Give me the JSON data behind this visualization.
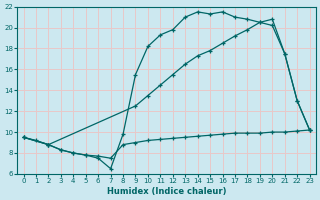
{
  "bg_color": "#cce8f0",
  "grid_color": "#e8c8c8",
  "line_color": "#006666",
  "xlabel": "Humidex (Indice chaleur)",
  "xlim": [
    -0.5,
    23.5
  ],
  "ylim": [
    6,
    22
  ],
  "yticks": [
    6,
    8,
    10,
    12,
    14,
    16,
    18,
    20,
    22
  ],
  "xticks": [
    0,
    1,
    2,
    3,
    4,
    5,
    6,
    7,
    8,
    9,
    10,
    11,
    12,
    13,
    14,
    15,
    16,
    17,
    18,
    19,
    20,
    21,
    22,
    23
  ],
  "line1_x": [
    0,
    1,
    2,
    3,
    4,
    5,
    6,
    7,
    8,
    9,
    10,
    11,
    12,
    13,
    14,
    15,
    16,
    17,
    18,
    19,
    20,
    21,
    22,
    23
  ],
  "line1_y": [
    9.5,
    9.2,
    8.8,
    8.3,
    8.0,
    7.8,
    7.7,
    7.5,
    8.8,
    9.0,
    9.2,
    9.3,
    9.4,
    9.5,
    9.6,
    9.7,
    9.8,
    9.9,
    9.9,
    9.9,
    10.0,
    10.0,
    10.1,
    10.2
  ],
  "line2_x": [
    0,
    2,
    3,
    4,
    5,
    6,
    7,
    8,
    9,
    10,
    11,
    12,
    13,
    14,
    15,
    16,
    17,
    18,
    19,
    20,
    21,
    22,
    23
  ],
  "line2_y": [
    9.5,
    8.8,
    8.3,
    8.0,
    7.8,
    7.5,
    6.5,
    9.8,
    15.5,
    18.2,
    19.3,
    19.8,
    21.0,
    21.5,
    21.3,
    21.5,
    21.0,
    20.8,
    20.5,
    20.2,
    17.5,
    13.0,
    10.2
  ],
  "line3_x": [
    0,
    2,
    9,
    10,
    11,
    12,
    13,
    14,
    15,
    16,
    17,
    18,
    19,
    20,
    21,
    22,
    23
  ],
  "line3_y": [
    9.5,
    8.8,
    12.5,
    13.5,
    14.5,
    15.5,
    16.5,
    17.3,
    17.8,
    18.5,
    19.2,
    19.8,
    20.5,
    20.8,
    17.5,
    13.0,
    10.2
  ]
}
